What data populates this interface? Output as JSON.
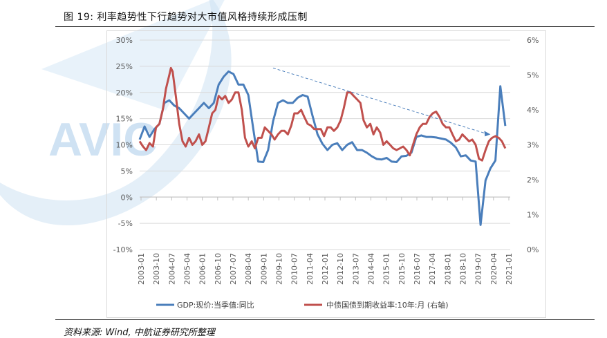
{
  "caption": "图 19: 利率趋势性下行趋势对大市值风格持续形成压制",
  "source": "资料来源: Wind, 中航证券研究所整理",
  "watermark": "AVIC",
  "colors": {
    "gdp": "#4a7ebb",
    "bond": "#c0504d",
    "trend": "#4a7ebb",
    "grid": "#d9d9d9"
  },
  "chart_data": {
    "type": "line",
    "title": "利率趋势性下行趋势对大市值风格持续形成压制",
    "x_tick_labels": [
      "2003-01",
      "2003-10",
      "2004-07",
      "2005-04",
      "2006-01",
      "2006-10",
      "2007-07",
      "2008-04",
      "2009-01",
      "2009-10",
      "2010-07",
      "2011-04",
      "2012-01",
      "2012-10",
      "2013-07",
      "2014-04",
      "2015-01",
      "2015-10",
      "2016-07",
      "2017-04",
      "2018-01",
      "2018-10",
      "2019-07",
      "2020-04",
      "2021-01"
    ],
    "y_left": {
      "ticks": [
        "30%",
        "25%",
        "20%",
        "15%",
        "10%",
        "5%",
        "0%",
        "-5%",
        "-10%"
      ],
      "ylim": [
        -10,
        30
      ]
    },
    "y_right": {
      "ticks": [
        "6%",
        "5%",
        "4%",
        "3%",
        "2%",
        "1%",
        "0%"
      ],
      "ylim": [
        0,
        6
      ]
    },
    "series": [
      {
        "name": "GDP:现价:当季值:同比",
        "axis": "left",
        "t": [
          2003.0,
          2003.25,
          2003.5,
          2003.75,
          2004.0,
          2004.25,
          2004.5,
          2004.75,
          2005.0,
          2005.25,
          2005.5,
          2005.75,
          2006.0,
          2006.25,
          2006.5,
          2006.75,
          2007.0,
          2007.25,
          2007.5,
          2007.75,
          2008.0,
          2008.25,
          2008.5,
          2008.75,
          2009.0,
          2009.25,
          2009.5,
          2009.75,
          2010.0,
          2010.25,
          2010.5,
          2010.75,
          2011.0,
          2011.25,
          2011.5,
          2011.75,
          2012.0,
          2012.25,
          2012.5,
          2012.75,
          2013.0,
          2013.25,
          2013.5,
          2013.75,
          2014.0,
          2014.25,
          2014.5,
          2014.75,
          2015.0,
          2015.25,
          2015.5,
          2015.75,
          2016.0,
          2016.25,
          2016.5,
          2016.75,
          2017.0,
          2017.25,
          2017.5,
          2017.75,
          2018.0,
          2018.25,
          2018.5,
          2018.75,
          2019.0,
          2019.25,
          2019.5,
          2019.75,
          2020.0,
          2020.25,
          2020.5,
          2020.75,
          2021.0,
          2021.25,
          2021.5
        ],
        "values": [
          11.0,
          13.5,
          11.5,
          13.0,
          14.0,
          18.0,
          18.5,
          17.5,
          17.0,
          16.0,
          15.0,
          16.0,
          17.0,
          18.0,
          17.0,
          18.0,
          21.5,
          23.0,
          24.0,
          23.5,
          21.5,
          21.5,
          19.5,
          13.0,
          6.8,
          6.7,
          9.0,
          14.5,
          18.0,
          18.5,
          18.0,
          18.0,
          19.0,
          19.5,
          19.2,
          15.5,
          12.0,
          10.2,
          9.0,
          10.0,
          10.3,
          9.0,
          10.0,
          10.5,
          9.0,
          9.0,
          8.5,
          7.8,
          7.3,
          7.2,
          7.5,
          6.8,
          6.7,
          7.8,
          7.9,
          8.5,
          11.5,
          11.8,
          11.5,
          11.5,
          11.4,
          11.2,
          11.0,
          10.4,
          9.5,
          7.8,
          8.0,
          7.0,
          6.8,
          -5.3,
          3.2,
          5.5,
          7.0,
          21.2,
          13.6
        ]
      },
      {
        "name": "中债国债到期收益率:10年:月 (右轴)",
        "axis": "right",
        "t": [
          2003.0,
          2003.17,
          2003.33,
          2003.5,
          2003.67,
          2003.83,
          2004.0,
          2004.17,
          2004.33,
          2004.5,
          2004.58,
          2004.67,
          2004.83,
          2005.0,
          2005.17,
          2005.33,
          2005.5,
          2005.67,
          2005.83,
          2006.0,
          2006.17,
          2006.33,
          2006.5,
          2006.67,
          2006.83,
          2007.0,
          2007.17,
          2007.33,
          2007.5,
          2007.67,
          2007.83,
          2008.0,
          2008.17,
          2008.33,
          2008.5,
          2008.67,
          2008.83,
          2009.0,
          2009.17,
          2009.33,
          2009.5,
          2009.67,
          2009.83,
          2010.0,
          2010.17,
          2010.33,
          2010.5,
          2010.67,
          2010.83,
          2011.0,
          2011.17,
          2011.33,
          2011.5,
          2011.67,
          2011.83,
          2012.0,
          2012.17,
          2012.33,
          2012.5,
          2012.67,
          2012.83,
          2013.0,
          2013.17,
          2013.33,
          2013.5,
          2013.67,
          2013.83,
          2014.0,
          2014.17,
          2014.33,
          2014.5,
          2014.67,
          2014.83,
          2015.0,
          2015.17,
          2015.33,
          2015.5,
          2015.67,
          2015.83,
          2016.0,
          2016.17,
          2016.33,
          2016.5,
          2016.67,
          2016.83,
          2017.0,
          2017.17,
          2017.33,
          2017.5,
          2017.67,
          2017.83,
          2018.0,
          2018.17,
          2018.33,
          2018.5,
          2018.67,
          2018.83,
          2019.0,
          2019.17,
          2019.33,
          2019.5,
          2019.67,
          2019.83,
          2020.0,
          2020.17,
          2020.33,
          2020.5,
          2020.67,
          2020.83,
          2021.0,
          2021.17,
          2021.33,
          2021.5
        ],
        "values": [
          3.1,
          2.95,
          2.85,
          3.05,
          2.95,
          3.5,
          3.6,
          4.0,
          4.6,
          5.0,
          5.2,
          5.1,
          4.4,
          3.6,
          3.1,
          2.95,
          3.2,
          3.0,
          3.1,
          3.3,
          3.0,
          3.1,
          3.5,
          3.9,
          4.0,
          4.4,
          4.3,
          4.4,
          4.2,
          4.3,
          4.5,
          4.5,
          4.0,
          3.2,
          2.95,
          3.1,
          2.9,
          3.2,
          3.2,
          3.5,
          3.4,
          3.3,
          3.15,
          3.3,
          3.4,
          3.4,
          3.3,
          3.55,
          3.9,
          3.9,
          4.0,
          3.8,
          3.6,
          3.55,
          3.45,
          3.45,
          3.45,
          3.25,
          3.5,
          3.5,
          3.4,
          3.5,
          3.7,
          4.05,
          4.5,
          4.5,
          4.4,
          4.3,
          4.2,
          3.7,
          3.5,
          3.6,
          3.3,
          3.5,
          3.35,
          3.0,
          3.1,
          3.0,
          2.9,
          2.85,
          2.9,
          2.95,
          2.85,
          2.7,
          3.0,
          3.3,
          3.5,
          3.6,
          3.6,
          3.8,
          3.9,
          3.95,
          3.8,
          3.6,
          3.5,
          3.5,
          3.3,
          3.1,
          3.15,
          3.3,
          3.2,
          3.1,
          3.15,
          3.0,
          2.6,
          2.55,
          2.85,
          3.1,
          3.2,
          3.25,
          3.2,
          3.1,
          2.9
        ]
      }
    ],
    "trend_arrow": {
      "from": {
        "t": 2009.75,
        "value": 5.2
      },
      "to": {
        "t": 2020.75,
        "value": 3.3
      },
      "axis": "right",
      "style": "dashed"
    }
  }
}
